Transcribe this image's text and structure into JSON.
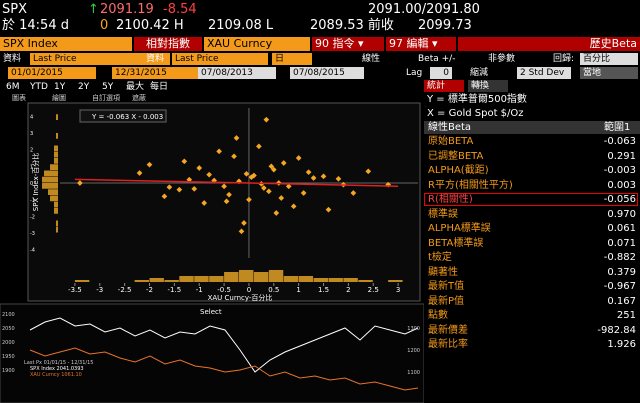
{
  "top": {
    "ticker": "SPX",
    "arrow": "↑",
    "last": "2091.19",
    "change": "-8.54",
    "bidask": "2091.00/2091.80",
    "time": "於 14:54 d",
    "vol": "0",
    "open": "2100.42 H",
    "high": "2109.08 L",
    "low": "2089.53 前收",
    "prev": "2099.73"
  },
  "menu": {
    "security1": "SPX Index",
    "mode": "相對指數",
    "security2": "XAU Curncy",
    "actions": "90 指令 ▾",
    "edit": "97 編輯 ▾",
    "title": "歷史Beta"
  },
  "settings": {
    "data1_label": "資料",
    "data1": "Last Price",
    "data2_label": "資料",
    "data2": "Last Price",
    "period": "日",
    "linear": "線性",
    "beta_pm": "Beta +/-",
    "nonparam": "非參數",
    "regress_label": "回歸:",
    "regress": "百分比",
    "start1": "01/01/2015",
    "end1": "12/31/2015",
    "start2": "07/08/2013",
    "end2": "07/08/2015",
    "lag_label": "Lag",
    "lag": "0",
    "shrink": "縮減",
    "std": "2 Std Dev",
    "local": "當地"
  },
  "ranges": [
    "6M",
    "YTD",
    "1Y",
    "2Y",
    "5Y",
    "最大",
    "每日"
  ],
  "tabs": [
    "統計",
    "轉換"
  ],
  "toolbar": [
    "圖表",
    "繪圖",
    "自訂選項",
    "遮蔽"
  ],
  "chart_data": {
    "type": "scatter",
    "annotation": "Y = -0.063 X - 0.003",
    "ylabel": "SPX Index-百分比",
    "xlabel": "XAU Curncy-百分比",
    "color": "#f5a623",
    "x": [
      -0.2,
      0.3,
      -0.8,
      0.5,
      1.1,
      -1.2,
      0.0,
      0.7,
      -0.5,
      1.5,
      -1.7,
      0.2,
      -0.3,
      0.9,
      -1.0,
      1.9,
      -2.2,
      0.4,
      -0.6,
      1.3,
      -0.1,
      0.6,
      -1.4,
      2.4,
      -0.9,
      0.1,
      1.0,
      -0.4,
      0.8,
      -2.0,
      1.6,
      -0.7,
      0.35,
      -1.1,
      2.8,
      -3.4,
      0.55,
      -0.25,
      1.2,
      -1.6,
      0.05,
      0.45,
      -0.45,
      1.8,
      -1.3,
      0.65,
      -0.15,
      2.1,
      -0.05,
      0.25
    ],
    "y": [
      0.1,
      -0.3,
      0.5,
      0.8,
      -0.6,
      0.2,
      -1.0,
      1.2,
      -0.2,
      0.4,
      -0.8,
      2.2,
      1.6,
      -1.4,
      0.9,
      -0.1,
      0.6,
      -0.5,
      1.9,
      0.3,
      -2.4,
      0.0,
      -0.4,
      0.7,
      -1.2,
      0.45,
      1.5,
      -0.7,
      -0.2,
      1.1,
      -1.6,
      0.15,
      3.8,
      -0.35,
      -0.1,
      0.0,
      -1.8,
      2.7,
      0.65,
      -0.25,
      0.35,
      1.0,
      -1.1,
      0.25,
      1.3,
      -0.9,
      -2.9,
      -0.6,
      0.55,
      -0.05
    ],
    "xlim": [
      -3.8,
      3.4
    ],
    "xticks": [
      -3.5,
      -3,
      -2.5,
      -2,
      -1.5,
      -1,
      -0.5,
      0,
      0.5,
      1,
      1.5,
      2,
      2.5,
      3
    ],
    "ylim": [
      -4.5,
      4.5
    ],
    "yticks": [
      -4,
      -3,
      -2,
      -1,
      0,
      1,
      2,
      3,
      4
    ],
    "grid": true
  },
  "stats": {
    "y_def": "Y = 標準普爾500指數",
    "x_def": "X = Gold Spot $/Oz",
    "header": "線性Beta",
    "range": "範圍1",
    "rows": [
      {
        "label": "原始BETA",
        "value": "-0.063"
      },
      {
        "label": "已調整BETA",
        "value": "0.291"
      },
      {
        "label": "ALPHA(截距)",
        "value": "-0.003"
      },
      {
        "label": "R平方(相關性平方)",
        "value": "0.003"
      },
      {
        "label": "R(相關性)",
        "value": "-0.056"
      },
      {
        "label": "標準誤",
        "value": "0.970"
      },
      {
        "label": "ALPHA標準誤",
        "value": "0.061"
      },
      {
        "label": "BETA標準誤",
        "value": "0.071"
      },
      {
        "label": "t檢定",
        "value": "-0.882"
      },
      {
        "label": "顯著性",
        "value": "0.379"
      },
      {
        "label": "最新T值",
        "value": "-0.967"
      },
      {
        "label": "最新P值",
        "value": "0.167"
      },
      {
        "label": "點數",
        "value": "251"
      },
      {
        "label": "最新價差",
        "value": "-982.84"
      },
      {
        "label": "最新比率",
        "value": "1.926"
      }
    ]
  },
  "history": {
    "select": "Select",
    "legend": [
      "Last Px 01/01/15 - 12/31/15",
      "SPX Index  2041.0393",
      "XAU Curncy  1061.10"
    ],
    "left_ticks": [
      "2100",
      "2050",
      "2000",
      "1950",
      "1900"
    ],
    "right_ticks": [
      "1300",
      "1200",
      "1100"
    ]
  }
}
